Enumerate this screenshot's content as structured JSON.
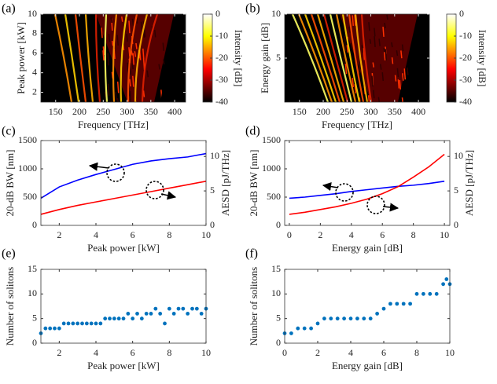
{
  "chart_data": [
    {
      "type": "heatmap",
      "label": "(a)",
      "xlabel": "Frequency [THz]",
      "ylabel": "Peak power [kW]",
      "xlim": [
        119,
        423
      ],
      "ylim": [
        1,
        10
      ],
      "xticks": [
        150,
        200,
        250,
        300,
        350,
        400
      ],
      "yticks": [
        2,
        4,
        6,
        8,
        10
      ],
      "colormap": "hot",
      "colorbar_label": "Intensity [dB]",
      "clim": [
        -40,
        0
      ],
      "cticks": [
        0,
        -10,
        -20,
        -30,
        -40
      ]
    },
    {
      "type": "heatmap",
      "label": "(b)",
      "xlabel": "Frequency [THz]",
      "ylabel": "Energy gain [dB]",
      "xlim": [
        119,
        423
      ],
      "ylim": [
        0,
        10
      ],
      "xticks": [
        150,
        200,
        250,
        300,
        350,
        400
      ],
      "yticks": [
        5,
        10
      ],
      "colormap": "hot",
      "colorbar_label": "Intensity [dB]",
      "clim": [
        -40,
        0
      ],
      "cticks": [
        0,
        -10,
        -20,
        -30,
        -40
      ]
    },
    {
      "type": "line",
      "label": "(c)",
      "xlabel": "Peak power [kW]",
      "ylabel": "20-dB BW [nm]",
      "y2label": "AESD [pJ/THz]",
      "xlim": [
        1,
        10
      ],
      "ylim": [
        0,
        1500
      ],
      "y2lim": [
        0,
        12.3
      ],
      "xticks": [
        2,
        4,
        6,
        8,
        10
      ],
      "yticks": [
        0,
        500,
        1000,
        1500
      ],
      "y2ticks": [
        0,
        5,
        10
      ],
      "x": [
        1,
        2,
        3,
        4,
        5,
        6,
        7,
        8,
        9,
        10
      ],
      "series": [
        {
          "color": "#0000ff",
          "axis": "y",
          "values": [
            480,
            680,
            800,
            900,
            990,
            1080,
            1140,
            1180,
            1210,
            1270
          ]
        },
        {
          "color": "#ff0000",
          "axis": "y2",
          "values": [
            1.6,
            2.3,
            2.9,
            3.4,
            3.9,
            4.4,
            4.9,
            5.4,
            5.9,
            6.4
          ]
        }
      ]
    },
    {
      "type": "line",
      "label": "(d)",
      "xlabel": "Energy gain [dB]",
      "ylabel": "20-dB BW [nm]",
      "y2label": "AESD [pJ/THz]",
      "xlim": [
        -0.3,
        10.35
      ],
      "ylim": [
        0,
        1500
      ],
      "y2lim": [
        0,
        12.3
      ],
      "xticks": [
        0,
        2,
        4,
        6,
        8,
        10
      ],
      "yticks": [
        0,
        500,
        1000,
        1500
      ],
      "y2ticks": [
        0,
        5,
        10
      ],
      "x": [
        0,
        1,
        2,
        3,
        4,
        5,
        6,
        7,
        8,
        9,
        10
      ],
      "series": [
        {
          "color": "#0000ff",
          "axis": "y",
          "values": [
            480,
            500,
            530,
            560,
            600,
            630,
            660,
            690,
            710,
            740,
            780
          ]
        },
        {
          "color": "#ff0000",
          "axis": "y2",
          "values": [
            1.6,
            1.9,
            2.3,
            2.7,
            3.2,
            3.8,
            4.6,
            5.6,
            7.0,
            8.5,
            10.3
          ]
        }
      ]
    },
    {
      "type": "scatter",
      "label": "(e)",
      "xlabel": "Peak power [kW]",
      "ylabel": "Number of solitons",
      "color": "#0072bd",
      "xlim": [
        1,
        10
      ],
      "ylim": [
        0,
        15
      ],
      "xticks": [
        2,
        4,
        6,
        8,
        10
      ],
      "yticks": [
        0,
        5,
        10,
        15
      ],
      "x": [
        1,
        1.25,
        1.5,
        1.75,
        2,
        2.25,
        2.5,
        2.75,
        3,
        3.25,
        3.5,
        3.75,
        4,
        4.25,
        4.5,
        4.75,
        5,
        5.25,
        5.5,
        5.75,
        6,
        6.25,
        6.5,
        6.75,
        7,
        7.25,
        7.5,
        7.75,
        8,
        8.25,
        8.5,
        8.75,
        9,
        9.25,
        9.5,
        9.75,
        10
      ],
      "values": [
        2,
        3,
        3,
        3,
        3,
        4,
        4,
        4,
        4,
        4,
        4,
        4,
        4,
        4,
        5,
        5,
        5,
        5,
        5,
        6,
        5,
        6,
        5,
        6,
        6,
        7,
        6,
        4,
        7,
        6,
        7,
        7,
        6,
        7,
        7,
        6,
        7
      ]
    },
    {
      "type": "scatter",
      "label": "(f)",
      "xlabel": "Energy gain [dB]",
      "ylabel": "Number of solitons",
      "color": "#0072bd",
      "xlim": [
        0,
        10
      ],
      "ylim": [
        0,
        15
      ],
      "xticks": [
        0,
        2,
        4,
        6,
        8,
        10
      ],
      "yticks": [
        0,
        5,
        10,
        15
      ],
      "x": [
        0,
        0.4,
        0.8,
        1.2,
        1.6,
        2.0,
        2.4,
        2.8,
        3.2,
        3.6,
        4.0,
        4.4,
        4.8,
        5.2,
        5.6,
        6.0,
        6.4,
        6.8,
        7.2,
        7.6,
        8.0,
        8.4,
        8.8,
        9.2,
        9.6,
        9.8,
        10
      ],
      "values": [
        2,
        2,
        3,
        3,
        3,
        4,
        5,
        5,
        5,
        5,
        5,
        5,
        5,
        5,
        6,
        7,
        8,
        8,
        8,
        8,
        10,
        10,
        10,
        10,
        12,
        13,
        12
      ]
    }
  ]
}
